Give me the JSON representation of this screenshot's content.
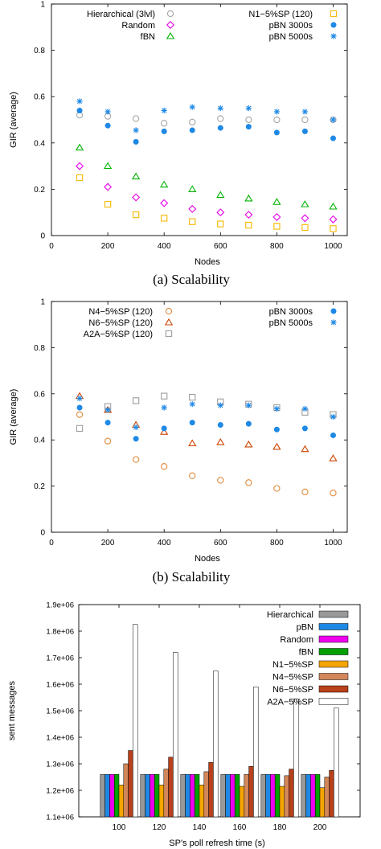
{
  "chart_data": [
    {
      "type": "scatter",
      "caption": "(a) Scalability",
      "xlabel": "Nodes",
      "ylabel": "GIR (average)",
      "xlim": [
        0,
        1050
      ],
      "ylim": [
        0,
        1
      ],
      "xticks": [
        "0",
        "200",
        "400",
        "600",
        "800",
        "1000"
      ],
      "yticks": [
        "0",
        "0.2",
        "0.4",
        "0.6",
        "0.8",
        "1"
      ],
      "x": [
        100,
        200,
        300,
        400,
        500,
        600,
        700,
        800,
        900,
        1000
      ],
      "legend": "top",
      "series": [
        {
          "name": "Hierarchical (3lvl)",
          "marker": "circle-open",
          "color": "#a6a6a6",
          "values": [
            0.52,
            0.515,
            0.505,
            0.485,
            0.49,
            0.505,
            0.5,
            0.5,
            0.5,
            0.5
          ]
        },
        {
          "name": "Random",
          "marker": "diamond-open",
          "color": "#e600e6",
          "values": [
            0.3,
            0.21,
            0.165,
            0.14,
            0.115,
            0.1,
            0.09,
            0.08,
            0.075,
            0.07
          ]
        },
        {
          "name": "fBN",
          "marker": "triangle-open",
          "color": "#00b300",
          "values": [
            0.38,
            0.3,
            0.255,
            0.22,
            0.2,
            0.175,
            0.16,
            0.145,
            0.135,
            0.125
          ]
        },
        {
          "name": "N1−5%SP (120)",
          "marker": "square-open",
          "color": "#f5b800",
          "values": [
            0.25,
            0.135,
            0.09,
            0.075,
            0.06,
            0.05,
            0.045,
            0.04,
            0.035,
            0.03
          ]
        },
        {
          "name": "pBN 3000s",
          "marker": "circle-filled",
          "color": "#1e88e5",
          "values": [
            0.54,
            0.475,
            0.405,
            0.45,
            0.455,
            0.465,
            0.47,
            0.445,
            0.45,
            0.42
          ]
        },
        {
          "name": "pBN 5000s",
          "marker": "star",
          "color": "#1e88e5",
          "values": [
            0.58,
            0.535,
            0.455,
            0.54,
            0.555,
            0.55,
            0.55,
            0.535,
            0.535,
            0.5
          ]
        }
      ]
    },
    {
      "type": "scatter",
      "caption": "(b) Scalability",
      "xlabel": "Nodes",
      "ylabel": "GIR (average)",
      "xlim": [
        0,
        1050
      ],
      "ylim": [
        0,
        1
      ],
      "xticks": [
        "0",
        "200",
        "400",
        "600",
        "800",
        "1000"
      ],
      "yticks": [
        "0",
        "0.2",
        "0.4",
        "0.6",
        "0.8",
        "1"
      ],
      "x": [
        100,
        200,
        300,
        400,
        500,
        600,
        700,
        800,
        900,
        1000
      ],
      "legend": "top",
      "series": [
        {
          "name": "N4−5%SP (120)",
          "marker": "circle-open",
          "color": "#e08a3c",
          "values": [
            0.51,
            0.395,
            0.315,
            0.285,
            0.245,
            0.225,
            0.215,
            0.19,
            0.175,
            0.17
          ]
        },
        {
          "name": "N6−5%SP (120)",
          "marker": "triangle-open",
          "color": "#cc4400",
          "values": [
            0.59,
            0.53,
            0.465,
            0.435,
            0.385,
            0.39,
            0.38,
            0.37,
            0.36,
            0.32
          ]
        },
        {
          "name": "A2A−5%SP (120)",
          "marker": "square-open",
          "color": "#9e9e9e",
          "values": [
            0.45,
            0.545,
            0.57,
            0.59,
            0.585,
            0.565,
            0.555,
            0.54,
            0.52,
            0.51
          ]
        },
        {
          "name": "pBN 3000s",
          "marker": "circle-filled",
          "color": "#1e88e5",
          "values": [
            0.54,
            0.475,
            0.405,
            0.45,
            0.475,
            0.465,
            0.47,
            0.445,
            0.45,
            0.42
          ]
        },
        {
          "name": "pBN 5000s",
          "marker": "star",
          "color": "#1e88e5",
          "values": [
            0.58,
            0.53,
            0.455,
            0.54,
            0.555,
            0.55,
            0.55,
            0.535,
            0.535,
            0.5
          ]
        }
      ]
    },
    {
      "type": "bar",
      "xlabel": "SP's poll refresh time (s)",
      "ylabel": "sent messages",
      "categories": [
        "100",
        "120",
        "140",
        "160",
        "180",
        "200"
      ],
      "ylim": [
        1100000,
        1900000
      ],
      "yticks": [
        "1.1e+06",
        "1.2e+06",
        "1.3e+06",
        "1.4e+06",
        "1.5e+06",
        "1.6e+06",
        "1.7e+06",
        "1.8e+06",
        "1.9e+06"
      ],
      "legend": "top-right",
      "series": [
        {
          "name": "Hierarchical",
          "color": "#999999",
          "values": [
            1260000,
            1260000,
            1260000,
            1260000,
            1260000,
            1260000
          ]
        },
        {
          "name": "pBN",
          "color": "#1e88e5",
          "values": [
            1260000,
            1260000,
            1260000,
            1260000,
            1260000,
            1260000
          ]
        },
        {
          "name": "Random",
          "color": "#ee00ee",
          "values": [
            1260000,
            1260000,
            1260000,
            1260000,
            1260000,
            1260000
          ]
        },
        {
          "name": "fBN",
          "color": "#00a000",
          "values": [
            1260000,
            1260000,
            1260000,
            1260000,
            1260000,
            1260000
          ]
        },
        {
          "name": "N1−5%SP",
          "color": "#f5a500",
          "values": [
            1220000,
            1220000,
            1220000,
            1215000,
            1215000,
            1210000
          ]
        },
        {
          "name": "N4−5%SP",
          "color": "#d2875a",
          "values": [
            1300000,
            1280000,
            1270000,
            1260000,
            1255000,
            1250000
          ]
        },
        {
          "name": "N6−5%SP",
          "color": "#b8401a",
          "values": [
            1350000,
            1325000,
            1305000,
            1290000,
            1280000,
            1275000
          ]
        },
        {
          "name": "A2A−5%SP",
          "color": "#ffffff",
          "values": [
            1825000,
            1720000,
            1650000,
            1590000,
            1545000,
            1510000
          ]
        }
      ]
    }
  ]
}
